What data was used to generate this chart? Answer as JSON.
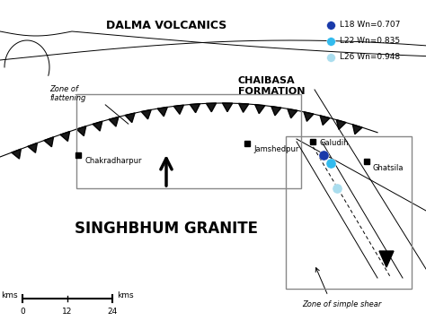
{
  "bg_color": "#ffffff",
  "dalma_volcanics_label": "DALMA VOLCANICS",
  "chaibasa_label": "CHAIBASA\nFORMATION",
  "singhbhum_label": "SINGHBHUM GRANITE",
  "zone_flat_label": "Zone of\nflattening",
  "zone_shear_label": "Zone of simple shear",
  "jamshedpur_label": "Jamshedpur",
  "chakradharpur_label": "Chakradharpur",
  "galudih_label": "Galudih",
  "ghatsila_label": "Ghatsila",
  "legend_items": [
    {
      "label": "L18 Wn=0.707",
      "color": "#1a3aaa"
    },
    {
      "label": "L22 Wn=0.835",
      "color": "#33bbee"
    },
    {
      "label": "L26 Wn=0.948",
      "color": "#aaddee"
    }
  ],
  "scale_label_left": "kms",
  "scale_label_right": "kms",
  "scale_ticks": [
    0,
    12,
    24
  ]
}
